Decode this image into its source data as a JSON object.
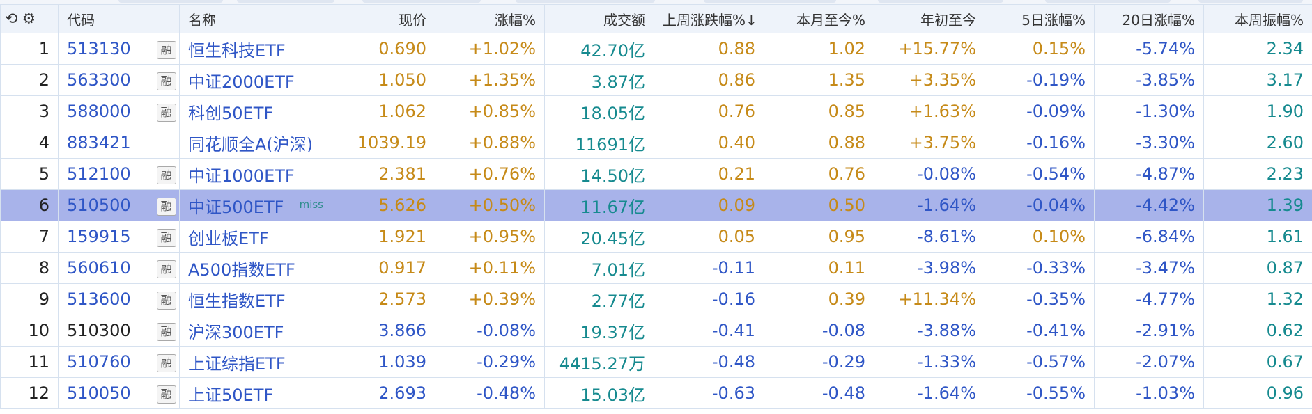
{
  "header": {
    "undo_icon": "undo-icon",
    "settings_icon": "gear-icon",
    "columns": [
      "代码",
      "名称",
      "现价",
      "涨幅%",
      "成交额",
      "上周涨跌幅%↓",
      "本月至今%",
      "年初至今",
      "5日涨幅%",
      "20日涨幅%",
      "本周振幅%"
    ]
  },
  "rows": [
    {
      "idx": "1",
      "code": "513130",
      "rong": "融",
      "name": "恒生科技ETF",
      "tag": "",
      "price": "0.690",
      "change": "+1.02%",
      "turnover": "42.70亿",
      "last_week": "0.88",
      "mtd": "1.02",
      "ytd": "+15.77%",
      "d5": "0.15%",
      "d20": "-5.74%",
      "amp": "2.34"
    },
    {
      "idx": "2",
      "code": "563300",
      "rong": "融",
      "name": "中证2000ETF",
      "tag": "",
      "price": "1.050",
      "change": "+1.35%",
      "turnover": "3.87亿",
      "last_week": "0.86",
      "mtd": "1.35",
      "ytd": "+3.35%",
      "d5": "-0.19%",
      "d20": "-3.85%",
      "amp": "3.17"
    },
    {
      "idx": "3",
      "code": "588000",
      "rong": "融",
      "name": "科创50ETF",
      "tag": "",
      "price": "1.062",
      "change": "+0.85%",
      "turnover": "18.05亿",
      "last_week": "0.76",
      "mtd": "0.85",
      "ytd": "+1.63%",
      "d5": "-0.09%",
      "d20": "-1.30%",
      "amp": "1.90"
    },
    {
      "idx": "4",
      "code": "883421",
      "rong": "",
      "name": "同花顺全A(沪深)",
      "tag": "",
      "price": "1039.19",
      "change": "+0.88%",
      "turnover": "11691亿",
      "last_week": "0.40",
      "mtd": "0.88",
      "ytd": "+3.75%",
      "d5": "-0.16%",
      "d20": "-3.30%",
      "amp": "2.60"
    },
    {
      "idx": "5",
      "code": "512100",
      "rong": "融",
      "name": "中证1000ETF",
      "tag": "",
      "price": "2.381",
      "change": "+0.76%",
      "turnover": "14.50亿",
      "last_week": "0.21",
      "mtd": "0.76",
      "ytd": "-0.08%",
      "d5": "-0.54%",
      "d20": "-4.87%",
      "amp": "2.23"
    },
    {
      "idx": "6",
      "code": "510500",
      "rong": "融",
      "name": "中证500ETF",
      "tag": "miss",
      "price": "5.626",
      "change": "+0.50%",
      "turnover": "11.67亿",
      "last_week": "0.09",
      "mtd": "0.50",
      "ytd": "-1.64%",
      "d5": "-0.04%",
      "d20": "-4.42%",
      "amp": "1.39"
    },
    {
      "idx": "7",
      "code": "159915",
      "rong": "融",
      "name": "创业板ETF",
      "tag": "",
      "price": "1.921",
      "change": "+0.95%",
      "turnover": "20.45亿",
      "last_week": "0.05",
      "mtd": "0.95",
      "ytd": "-8.61%",
      "d5": "0.10%",
      "d20": "-6.84%",
      "amp": "1.61"
    },
    {
      "idx": "8",
      "code": "560610",
      "rong": "融",
      "name": "A500指数ETF",
      "tag": "",
      "price": "0.917",
      "change": "+0.11%",
      "turnover": "7.01亿",
      "last_week": "-0.11",
      "mtd": "0.11",
      "ytd": "-3.98%",
      "d5": "-0.33%",
      "d20": "-3.47%",
      "amp": "0.87"
    },
    {
      "idx": "9",
      "code": "513600",
      "rong": "融",
      "name": "恒生指数ETF",
      "tag": "",
      "price": "2.573",
      "change": "+0.39%",
      "turnover": "2.77亿",
      "last_week": "-0.16",
      "mtd": "0.39",
      "ytd": "+11.34%",
      "d5": "-0.35%",
      "d20": "-4.77%",
      "amp": "1.32"
    },
    {
      "idx": "10",
      "code": "510300",
      "rong": "融",
      "name": "沪深300ETF",
      "tag": "",
      "price": "3.866",
      "change": "-0.08%",
      "turnover": "19.37亿",
      "last_week": "-0.41",
      "mtd": "-0.08",
      "ytd": "-3.88%",
      "d5": "-0.41%",
      "d20": "-2.91%",
      "amp": "0.62"
    },
    {
      "idx": "11",
      "code": "510760",
      "rong": "融",
      "name": "上证综指ETF",
      "tag": "",
      "price": "1.039",
      "change": "-0.29%",
      "turnover": "4415.27万",
      "last_week": "-0.48",
      "mtd": "-0.29",
      "ytd": "-1.33%",
      "d5": "-0.57%",
      "d20": "-2.07%",
      "amp": "0.67"
    },
    {
      "idx": "12",
      "code": "510050",
      "rong": "融",
      "name": "上证50ETF",
      "tag": "",
      "price": "2.693",
      "change": "-0.48%",
      "turnover": "15.03亿",
      "last_week": "-0.63",
      "mtd": "-0.48",
      "ytd": "-1.64%",
      "d5": "-0.55%",
      "d20": "-1.03%",
      "amp": "0.96"
    }
  ],
  "selected_row": "6",
  "colors": {
    "up": "#c68a18",
    "down": "#2f56c6",
    "turnover": "#168a8f",
    "selected": "#a8b3ea",
    "header": "#eef3fa"
  }
}
